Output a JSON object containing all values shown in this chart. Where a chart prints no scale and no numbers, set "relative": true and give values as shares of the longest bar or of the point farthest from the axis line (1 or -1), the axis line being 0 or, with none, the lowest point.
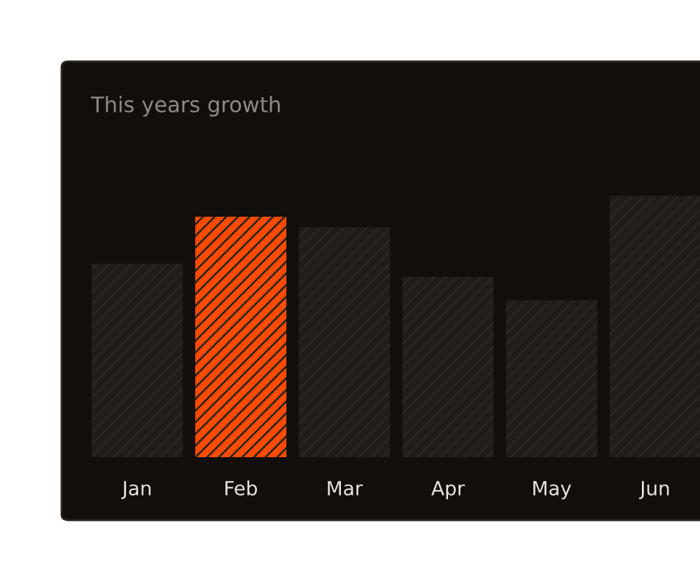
{
  "chart_data": {
    "type": "bar",
    "title": "This years growth",
    "relative": true,
    "categories": [
      "Jan",
      "Feb",
      "Mar",
      "Apr",
      "May",
      "Jun"
    ],
    "values": [
      0.74,
      0.92,
      0.88,
      0.69,
      0.6,
      1.0
    ],
    "colors": [
      "#1f1c1a",
      "#ff4a00",
      "#1f1c1a",
      "#1f1c1a",
      "#1f1c1a",
      "#1f1c1a"
    ],
    "grid": false,
    "legend": false
  }
}
